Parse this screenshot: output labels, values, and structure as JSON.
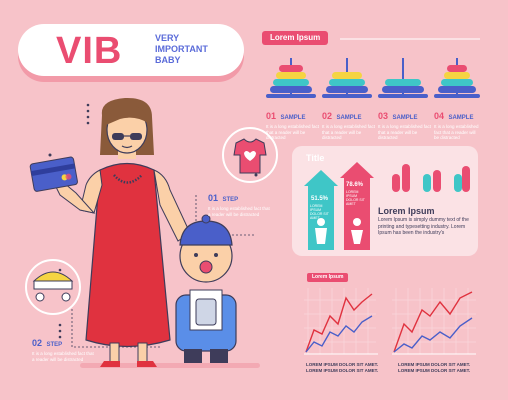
{
  "header": {
    "title": "VIB",
    "subtitle": [
      "VERY",
      "IMPORTANT",
      "BABY"
    ],
    "tag": "Lorem Ipsum"
  },
  "samples": [
    {
      "num": "01",
      "label": "SAMPLE",
      "desc": "It is a long established fact that a reader will be distracted"
    },
    {
      "num": "02",
      "label": "SAMPLE",
      "desc": "It is a long established fact that a reader will be distracted"
    },
    {
      "num": "03",
      "label": "SAMPLE",
      "desc": "It is a long established fact that a reader will be distracted"
    },
    {
      "num": "04",
      "label": "SAMPLE",
      "desc": "It is a long established fact that a reader will be distracted"
    }
  ],
  "steps": [
    {
      "num": "01",
      "label": "STEP",
      "desc": "It is a long established fact that a reader will be distracted"
    },
    {
      "num": "02",
      "label": "STEP",
      "desc": "It is a long established fact that a reader will be distracted"
    }
  ],
  "panel": {
    "title": "Title",
    "male_pct": "51.5%",
    "female_pct": "78.6%",
    "male_caption": "LOREM IPSUM DOLOR SIT AMET",
    "female_caption": "LOREM IPSUM DOLOR SIT AMET",
    "lorem_heading": "Lorem Ipsum",
    "lorem_text": "Lorem Ipsum is simply dummy text of the printing and typesetting industry. Lorem Ipsum has been the industry's"
  },
  "graphs": {
    "tag": "Lorem Ipsum",
    "caption1": [
      "LOREM IPSUM DOLOR SIT AMET.",
      "LOREM IPSUM DOLOR SIT AMET."
    ],
    "caption2": [
      "LOREM IPSUM DOLOR SIT AMET.",
      "LOREM IPSUM DOLOR SIT AMET."
    ]
  },
  "colors": {
    "background": "#f7c3c9",
    "accent": "#ea4d71",
    "blue": "#4a5fc9",
    "teal": "#3fc6c7"
  }
}
